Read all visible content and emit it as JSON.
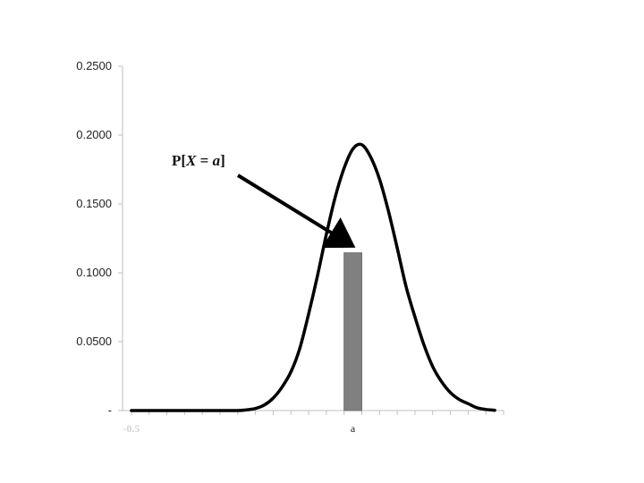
{
  "chart_data": {
    "type": "line",
    "title": "",
    "xlabel": "",
    "ylabel": "",
    "ylim": [
      0,
      0.25
    ],
    "xlim": [
      -0.5,
      21
    ],
    "y_ticks": [
      {
        "value": 0,
        "label": "-"
      },
      {
        "value": 0.05,
        "label": "0.0500"
      },
      {
        "value": 0.1,
        "label": "0.1000"
      },
      {
        "value": 0.15,
        "label": "0.1500"
      },
      {
        "value": 0.2,
        "label": "0.2000"
      },
      {
        "value": 0.25,
        "label": "0.2500"
      }
    ],
    "x_labels": [
      {
        "x": 0,
        "label": "-0.5",
        "faint": true
      },
      {
        "x": 12.5,
        "label": "a",
        "faint": false
      }
    ],
    "series": [
      {
        "type": "line",
        "color": "#000000",
        "x": [
          0,
          1,
          2,
          3,
          4,
          5,
          6,
          6.5,
          7,
          7.5,
          8,
          8.5,
          9,
          9.5,
          10,
          10.5,
          11,
          11.5,
          12,
          12.5,
          13,
          13.5,
          14,
          14.5,
          15,
          15.5,
          16,
          16.5,
          17,
          17.5,
          18,
          18.5,
          19,
          19.5,
          20,
          20.5
        ],
        "y": [
          0,
          0,
          0,
          0,
          0,
          0,
          0,
          0.0005,
          0.0015,
          0.004,
          0.009,
          0.017,
          0.028,
          0.045,
          0.07,
          0.098,
          0.128,
          0.155,
          0.176,
          0.19,
          0.193,
          0.184,
          0.168,
          0.145,
          0.118,
          0.09,
          0.068,
          0.048,
          0.032,
          0.021,
          0.013,
          0.008,
          0.005,
          0.002,
          0.0008,
          0.0002
        ]
      }
    ],
    "highlight_bar": {
      "x": 12.5,
      "width": 1,
      "value": 0.1145,
      "color": "#808080"
    },
    "annotation": {
      "prefix": "P[",
      "var": "X",
      "middle": " = ",
      "val": "a",
      "suffix": "]"
    }
  }
}
